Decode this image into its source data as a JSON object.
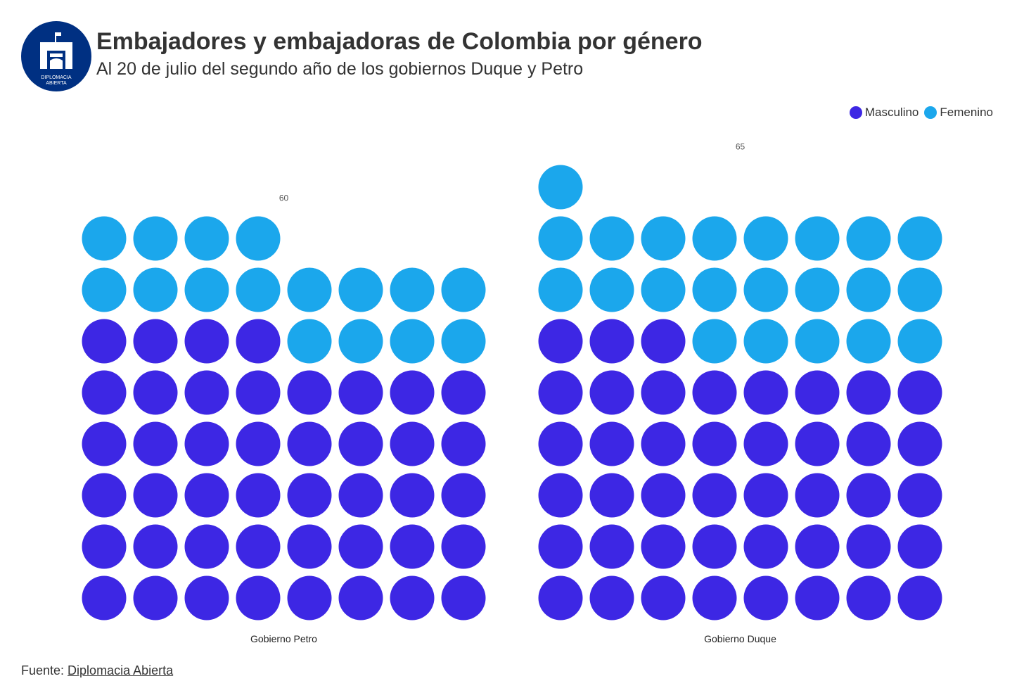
{
  "header": {
    "title": "Embajadores y embajadoras de Colombia por género",
    "subtitle": "Al 20 de julio del segundo año de los gobiernos Duque y Petro",
    "logo_text_line1": "DIPLOMACIA",
    "logo_text_line2": "ABIERTA"
  },
  "legend": {
    "position": "top-right",
    "items": [
      {
        "label": "Masculino",
        "color": "#3d27e4"
      },
      {
        "label": "Femenino",
        "color": "#1ba7ec"
      }
    ]
  },
  "chart_data": {
    "type": "waffle",
    "columns_per_group": 8,
    "categories": [
      "Gobierno Petro",
      "Gobierno Duque"
    ],
    "totals": [
      60,
      65
    ],
    "total_labels": [
      "60",
      "65"
    ],
    "series": [
      {
        "name": "Masculino",
        "color": "#3d27e4",
        "values": [
          44,
          43
        ]
      },
      {
        "name": "Femenino",
        "color": "#1ba7ec",
        "values": [
          16,
          22
        ]
      }
    ],
    "grid": false
  },
  "footer": {
    "prefix": "Fuente: ",
    "source_link": "Diplomacia Abierta"
  },
  "colors": {
    "logo_bg": "#003082",
    "text": "#333333"
  }
}
